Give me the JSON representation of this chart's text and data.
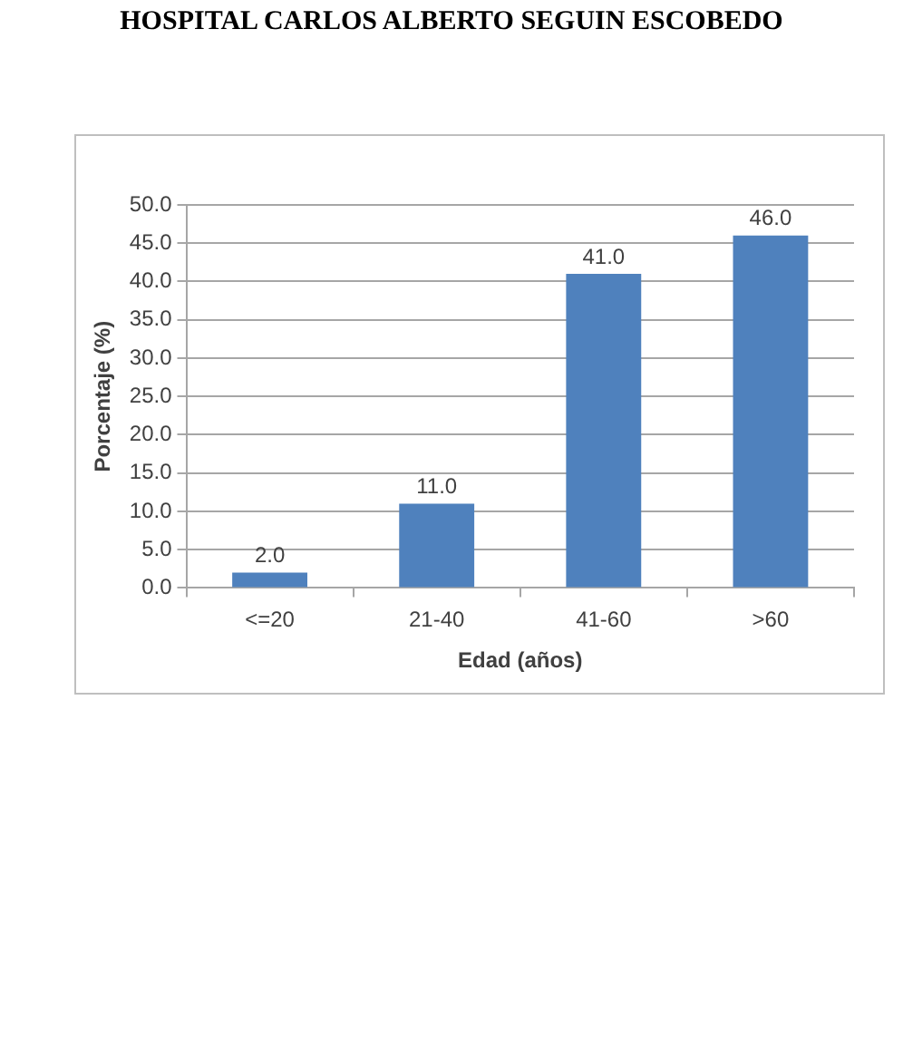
{
  "chart_data": {
    "type": "bar",
    "title": "HOSPITAL CARLOS ALBERTO SEGUIN ESCOBEDO",
    "xlabel": "Edad (años)",
    "ylabel": "Porcentaje (%)",
    "categories": [
      "<=20",
      "21-40",
      "41-60",
      ">60"
    ],
    "values": [
      2,
      11,
      41,
      46
    ],
    "value_labels": [
      "2.0",
      "11.0",
      "41.0",
      "46.0"
    ],
    "color": "#4f81bd",
    "ylim": [
      0,
      50
    ],
    "yticks": [
      {
        "value": 0,
        "label": "0.0"
      },
      {
        "value": 5,
        "label": "5.0"
      },
      {
        "value": 10,
        "label": "10.0"
      },
      {
        "value": 15,
        "label": "15.0"
      },
      {
        "value": 20,
        "label": "20.0"
      },
      {
        "value": 25,
        "label": "25.0"
      },
      {
        "value": 30,
        "label": "30.0"
      },
      {
        "value": 35,
        "label": "35.0"
      },
      {
        "value": 40,
        "label": "40.0"
      },
      {
        "value": 45,
        "label": "45.0"
      },
      {
        "value": 50,
        "label": "50.0"
      }
    ],
    "grid": "y"
  }
}
